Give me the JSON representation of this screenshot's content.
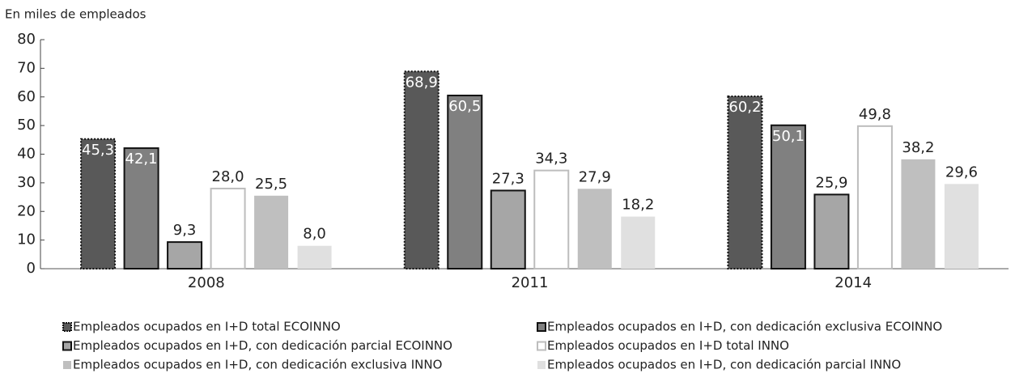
{
  "chart_data": {
    "type": "bar",
    "ylabel": "En miles de empleados",
    "categories": [
      "2008",
      "2011",
      "2014"
    ],
    "ylim": [
      0,
      80
    ],
    "yticks": [
      0,
      10,
      20,
      30,
      40,
      50,
      60,
      70,
      80
    ],
    "legend": "bottom",
    "series": [
      {
        "name": "Empleados ocupados en I+D total ECOINNO",
        "color": "#595959",
        "values": [
          45.3,
          68.9,
          60.2
        ],
        "value_labels": [
          "45,3",
          "68,9",
          "60,2"
        ]
      },
      {
        "name": "Empleados ocupados en I+D, con dedicación exclusiva ECOINNO",
        "color": "#808080",
        "values": [
          42.1,
          60.5,
          50.1
        ],
        "value_labels": [
          "42,1",
          "60,5",
          "50,1"
        ]
      },
      {
        "name": "Empleados ocupados en I+D, con dedicación parcial ECOINNO",
        "color": "#a6a6a6",
        "values": [
          9.3,
          27.3,
          25.9
        ],
        "value_labels": [
          "9,3",
          "27,3",
          "25,9"
        ]
      },
      {
        "name": "Empleados ocupados en I+D total INNO",
        "color": "#ffffff",
        "values": [
          28.0,
          34.3,
          49.8
        ],
        "value_labels": [
          "28,0",
          "34,3",
          "49,8"
        ]
      },
      {
        "name": "Empleados ocupados en I+D, con dedicación exclusiva INNO",
        "color": "#bfbfbf",
        "values": [
          25.5,
          27.9,
          38.2
        ],
        "value_labels": [
          "25,5",
          "27,9",
          "38,2"
        ]
      },
      {
        "name": "Empleados ocupados en I+D, con dedicación parcial INNO",
        "color": "#e0e0e0",
        "values": [
          8.0,
          18.2,
          29.6
        ],
        "value_labels": [
          "8,0",
          "18,2",
          "29,6"
        ]
      }
    ]
  }
}
